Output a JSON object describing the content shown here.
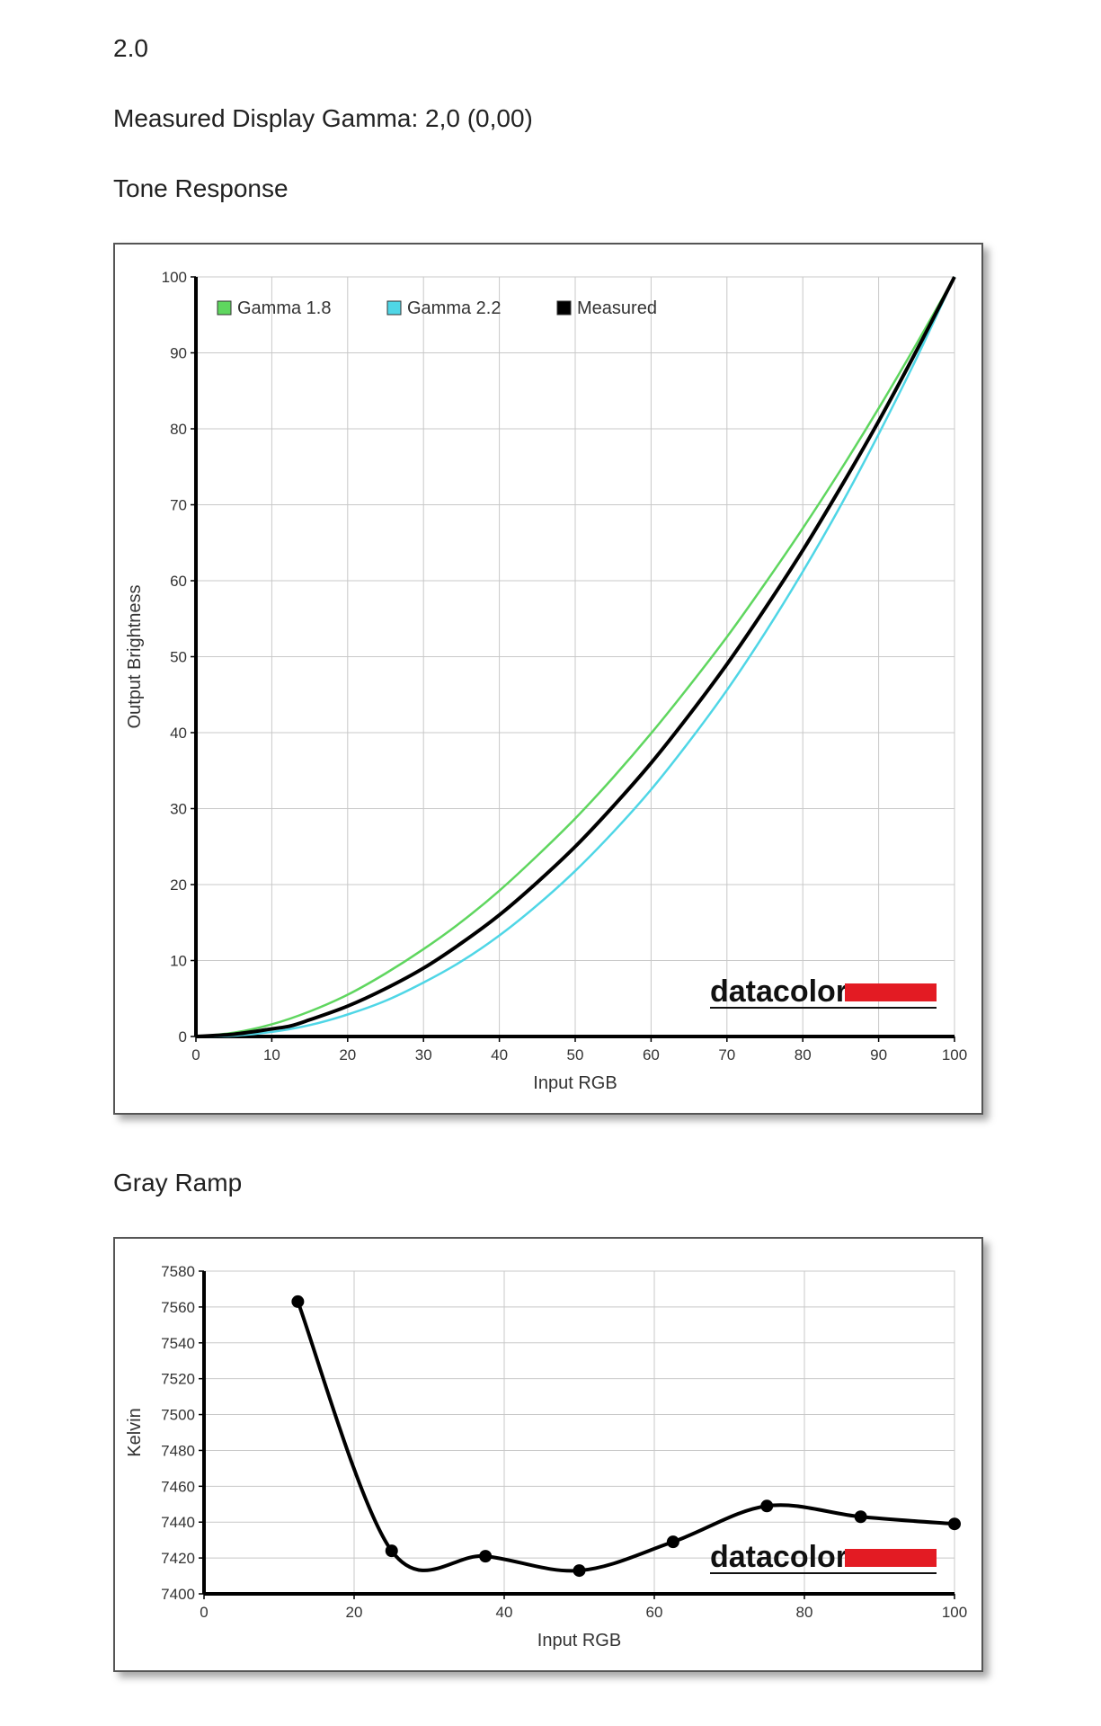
{
  "header": {
    "title": "2.0",
    "gamma_text": "Measured Display Gamma: 2,0 (0,00)",
    "tone_heading": "Tone Response",
    "gray_heading": "Gray Ramp"
  },
  "logo": {
    "text": "datacolor",
    "accent": "#e31b23"
  },
  "chart_data": [
    {
      "type": "line",
      "title": "Tone Response",
      "xlabel": "Input RGB",
      "ylabel": "Output Brightness",
      "xlim": [
        0,
        100
      ],
      "ylim": [
        0,
        100
      ],
      "xticks": [
        "0",
        "10",
        "20",
        "30",
        "40",
        "50",
        "60",
        "70",
        "80",
        "90",
        "100"
      ],
      "yticks": [
        "0",
        "10",
        "20",
        "30",
        "40",
        "50",
        "60",
        "70",
        "80",
        "90",
        "100"
      ],
      "grid": true,
      "legend": "top-left",
      "series": [
        {
          "name": "Gamma 1.8",
          "color": "#5fd65f",
          "x": [
            0,
            5,
            10,
            15,
            20,
            25,
            30,
            35,
            40,
            45,
            50,
            55,
            60,
            65,
            70,
            75,
            80,
            85,
            90,
            95,
            100
          ],
          "y": [
            0,
            0.5,
            1.6,
            3.3,
            5.5,
            8.3,
            11.5,
            15.1,
            19.2,
            23.8,
            28.7,
            34.1,
            39.9,
            46.1,
            52.6,
            59.6,
            66.9,
            74.6,
            82.7,
            91.2,
            100
          ]
        },
        {
          "name": "Gamma 2.2",
          "color": "#4fd6e6",
          "x": [
            0,
            5,
            10,
            15,
            20,
            25,
            30,
            35,
            40,
            45,
            50,
            55,
            60,
            65,
            70,
            75,
            80,
            85,
            90,
            95,
            100
          ],
          "y": [
            0,
            0.1,
            0.6,
            1.5,
            2.9,
            4.7,
            7.1,
            9.9,
            13.3,
            17.3,
            21.8,
            26.9,
            32.5,
            38.8,
            45.6,
            53.1,
            61.2,
            69.9,
            79.3,
            89.3,
            100
          ]
        },
        {
          "name": "Measured",
          "color": "#000000",
          "x": [
            0,
            5,
            10,
            12.5,
            15,
            20,
            25,
            30,
            35,
            40,
            45,
            50,
            55,
            60,
            65,
            70,
            75,
            80,
            85,
            90,
            95,
            100
          ],
          "y": [
            0,
            0.3,
            1.0,
            1.4,
            2.2,
            4.0,
            6.3,
            9.0,
            12.3,
            16.0,
            20.3,
            25.0,
            30.3,
            36.0,
            42.3,
            49.0,
            56.3,
            64.0,
            72.3,
            81.0,
            90.3,
            100
          ]
        }
      ]
    },
    {
      "type": "line",
      "title": "Gray Ramp",
      "xlabel": "Input RGB",
      "ylabel": "Kelvin",
      "xlim": [
        0,
        100
      ],
      "ylim": [
        7400,
        7580
      ],
      "xticks": [
        "0",
        "20",
        "40",
        "60",
        "80",
        "100"
      ],
      "yticks": [
        "7400",
        "7420",
        "7440",
        "7460",
        "7480",
        "7500",
        "7520",
        "7540",
        "7560",
        "7580"
      ],
      "grid": true,
      "series": [
        {
          "name": "",
          "color": "#000000",
          "x": [
            12.5,
            25,
            37.5,
            50,
            62.5,
            75,
            87.5,
            100
          ],
          "y": [
            7563,
            7424,
            7421,
            7413,
            7429,
            7449,
            7443,
            7439
          ]
        }
      ]
    }
  ]
}
